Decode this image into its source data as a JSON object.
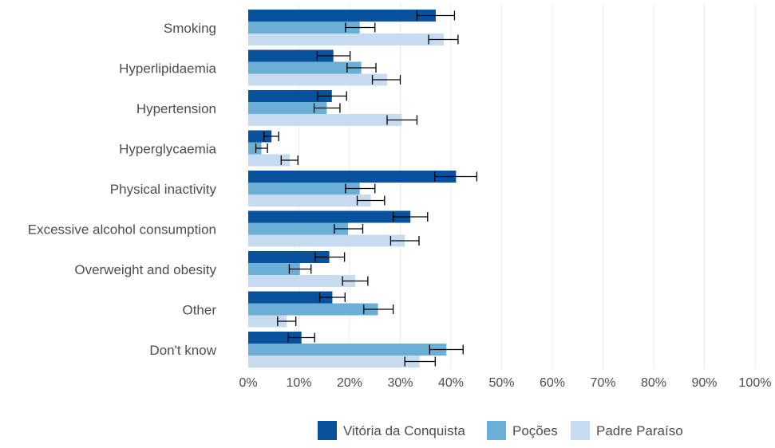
{
  "chart_data": {
    "type": "bar",
    "orientation": "horizontal",
    "categories": [
      "Smoking",
      "Hyperlipidaemia",
      "Hypertension",
      "Hyperglycaemia",
      "Physical inactivity",
      "Excessive alcohol consumption",
      "Overweight and obesity",
      "Other",
      "Don't know"
    ],
    "series": [
      {
        "name": "Vitória da Conquista",
        "color": "#08519c",
        "values": [
          37.0,
          16.8,
          16.5,
          4.6,
          41.0,
          32.0,
          16.0,
          16.6,
          10.5
        ],
        "error_low": [
          33.3,
          13.6,
          13.7,
          3.1,
          36.8,
          28.6,
          13.2,
          14.1,
          7.9
        ],
        "error_high": [
          40.7,
          20.1,
          19.4,
          6.0,
          45.1,
          35.4,
          19.0,
          19.1,
          13.1
        ]
      },
      {
        "name": "Poções",
        "color": "#6baed6",
        "values": [
          22.0,
          22.3,
          15.5,
          2.6,
          22.0,
          19.7,
          10.2,
          25.6,
          39.1
        ],
        "error_low": [
          19.2,
          19.5,
          13.0,
          1.5,
          19.2,
          17.0,
          8.1,
          22.8,
          35.8
        ],
        "error_high": [
          25.0,
          25.2,
          18.1,
          3.8,
          25.0,
          22.6,
          12.4,
          28.6,
          42.4
        ]
      },
      {
        "name": "Padre Paraíso",
        "color": "#c6dbef",
        "values": [
          38.6,
          27.4,
          30.3,
          8.2,
          24.2,
          30.9,
          21.1,
          7.6,
          33.8
        ],
        "error_low": [
          35.6,
          24.5,
          27.4,
          6.5,
          21.5,
          28.1,
          18.6,
          5.8,
          30.9
        ],
        "error_high": [
          41.4,
          30.0,
          33.3,
          9.8,
          26.9,
          33.7,
          23.6,
          9.4,
          36.9
        ]
      }
    ],
    "x_ticks": [
      "0%",
      "10%",
      "20%",
      "30%",
      "40%",
      "50%",
      "60%",
      "70%",
      "80%",
      "90%",
      "100%"
    ],
    "xlim": [
      0,
      100
    ],
    "unit": "%",
    "xlabel": "",
    "ylabel": "",
    "title": "",
    "grid": "vertical",
    "legend_position": "bottom-right",
    "grid_color": "#ebebeb",
    "text_color": "#4d4d4d",
    "errorbar_color": "#000000"
  }
}
